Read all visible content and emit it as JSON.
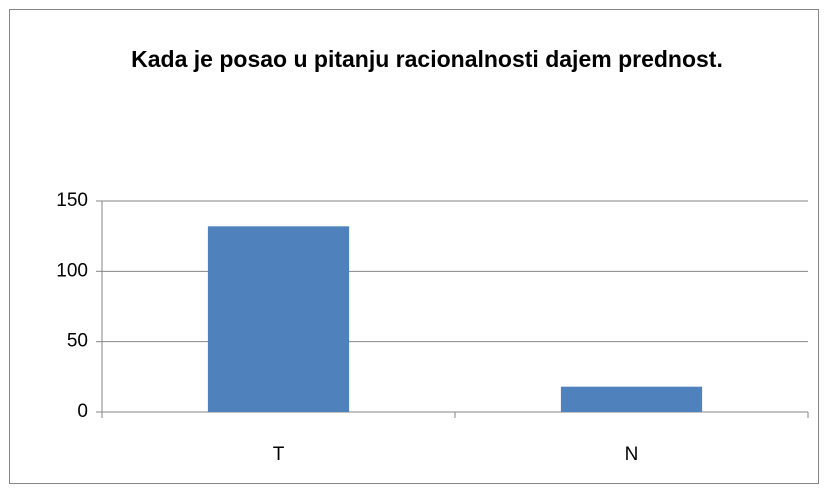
{
  "chart_data": {
    "type": "bar",
    "title": "Kada je posao u pitanju racionalnosti dajem prednost.",
    "categories": [
      "T",
      "N"
    ],
    "values": [
      132,
      18
    ],
    "color": "#4f81bd",
    "ylim": [
      0,
      150
    ],
    "yticks": [
      0,
      50,
      100,
      150
    ],
    "grid": true
  }
}
